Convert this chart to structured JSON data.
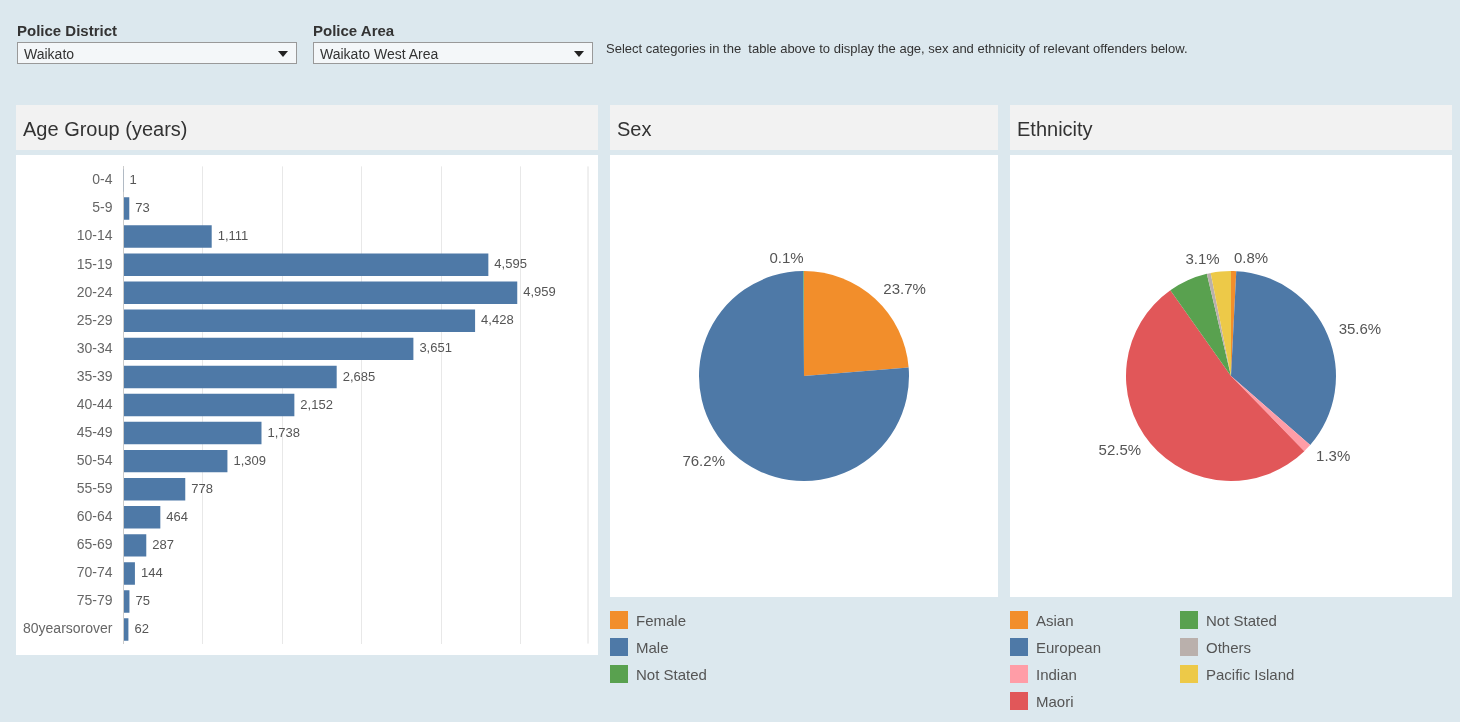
{
  "chart_data": [
    {
      "type": "other",
      "annotations": [
        "Police District",
        "Waikato",
        "Police Area",
        "Waikato West Area",
        "Select categories in the  table above to display the age, sex and ethnicity of relevant offenders below."
      ]
    },
    {
      "type": "bar",
      "title": "Age Group (years)",
      "orientation": "horizontal",
      "categories": [
        "0-4",
        "5-9",
        "10-14",
        "15-19",
        "20-24",
        "25-29",
        "30-34",
        "35-39",
        "40-44",
        "45-49",
        "50-54",
        "55-59",
        "60-64",
        "65-69",
        "70-74",
        "75-79",
        "80yearsorover"
      ],
      "values": [
        1,
        73,
        1111,
        4595,
        4959,
        4428,
        3651,
        2685,
        2152,
        1738,
        1309,
        778,
        464,
        287,
        144,
        75,
        62
      ],
      "value_labels": [
        "1",
        "73",
        "1,111",
        "4,595",
        "4,959",
        "4,428",
        "3,651",
        "2,685",
        "2,152",
        "1,738",
        "1,309",
        "778",
        "464",
        "287",
        "144",
        "75",
        "62"
      ],
      "color": "#4e79a7",
      "xlim": [
        0,
        5850
      ],
      "xticks": [
        {
          "value": 0,
          "label": null
        },
        {
          "value": 1000,
          "label": null
        },
        {
          "value": 2000,
          "label": null
        },
        {
          "value": 3000,
          "label": null
        },
        {
          "value": 4000,
          "label": null
        },
        {
          "value": 5000,
          "label": null
        }
      ],
      "grid": "x",
      "tick_labels": "y"
    },
    {
      "type": "pie",
      "title": "Sex",
      "categories": [
        "Female",
        "Male",
        "Not Stated"
      ],
      "values": [
        23.7,
        76.2,
        0.1
      ],
      "colors": [
        "#f28e2b",
        "#4e79a7",
        "#59a14f"
      ],
      "value_labels": [
        "23.7%",
        "76.2%",
        "0.1%"
      ],
      "legend": "bottom"
    },
    {
      "type": "pie",
      "title": "Ethnicity",
      "categories": [
        "Asian",
        "European",
        "Indian",
        "Maori",
        "Not Stated",
        "Others",
        "Pacific Island"
      ],
      "values": [
        0.8,
        35.6,
        1.3,
        52.5,
        6.1,
        0.6,
        3.1
      ],
      "colors": [
        "#f28e2b",
        "#4e79a7",
        "#ff9da7",
        "#e15759",
        "#59a14f",
        "#bab0ac",
        "#edc948"
      ],
      "value_labels": [
        "0.8%",
        "35.6%",
        "1.3%",
        "52.5%",
        null,
        null,
        "3.1%"
      ],
      "legend": "bottom"
    }
  ]
}
